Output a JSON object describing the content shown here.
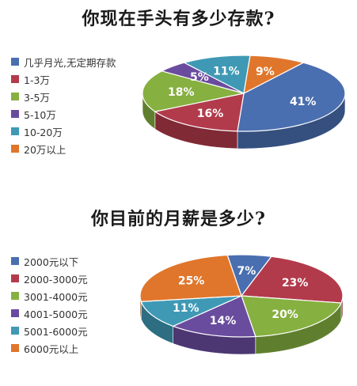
{
  "chart_data": [
    {
      "type": "pie",
      "title": "你现在手头有多少存款?",
      "slices": [
        {
          "label": "几乎月光,无定期存款",
          "value": 41,
          "display": "41%",
          "color": "#4a6fb0"
        },
        {
          "label": "1-3万",
          "value": 16,
          "display": "16%",
          "color": "#b23b4b"
        },
        {
          "label": "3-5万",
          "value": 18,
          "display": "18%",
          "color": "#86b040"
        },
        {
          "label": "5-10万",
          "value": 5,
          "display": "5%",
          "color": "#6a4c9e"
        },
        {
          "label": "10-20万",
          "value": 11,
          "display": "11%",
          "color": "#3f99b5"
        },
        {
          "label": "20万以上",
          "value": 9,
          "display": "9%",
          "color": "#e0762b"
        }
      ],
      "legend_position": "left"
    },
    {
      "type": "pie",
      "title": "你目前的月薪是多少?",
      "slices": [
        {
          "label": "2000元以下",
          "value": 7,
          "display": "7%",
          "color": "#4a6fb0"
        },
        {
          "label": "2000-3000元",
          "value": 23,
          "display": "23%",
          "color": "#b23b4b"
        },
        {
          "label": "3001-4000元",
          "value": 20,
          "display": "20%",
          "color": "#86b040"
        },
        {
          "label": "4001-5000元",
          "value": 14,
          "display": "14%",
          "color": "#6a4c9e"
        },
        {
          "label": "5001-6000元",
          "value": 11,
          "display": "11%",
          "color": "#3f99b5"
        },
        {
          "label": "6000元以上",
          "value": 25,
          "display": "25%",
          "color": "#e0762b"
        }
      ],
      "legend_position": "left"
    }
  ]
}
